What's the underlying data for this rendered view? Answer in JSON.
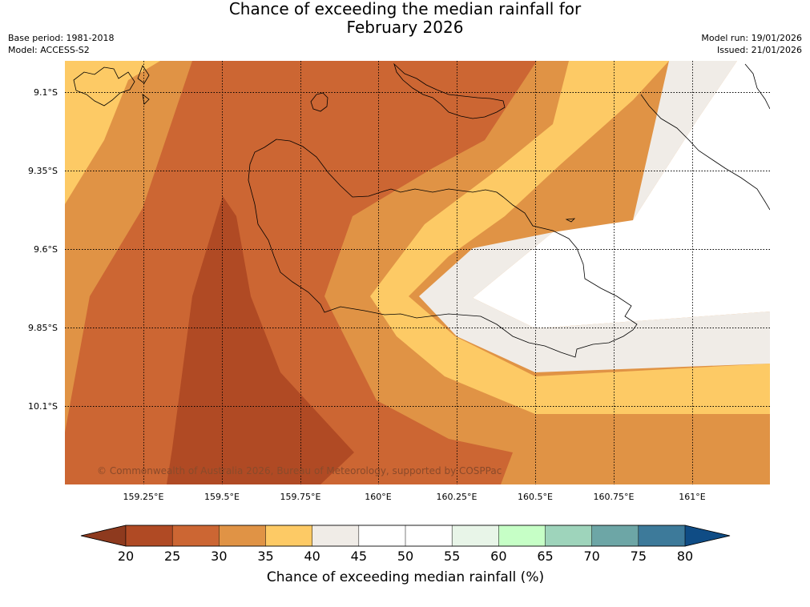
{
  "title_line1": "Chance of exceeding the median rainfall for",
  "title_line2": "February 2026",
  "base_period": "Base period: 1981-2018",
  "model": "Model: ACCESS-S2",
  "model_run": "Model run: 19/01/2026",
  "issued": "Issued: 21/01/2026",
  "copyright": "© Commonwealth of Australia 2026, Bureau of Meteorology, supported by COSPPac",
  "latitude_labels": [
    "9.1°S",
    "9.35°S",
    "9.6°S",
    "9.85°S",
    "10.1°S"
  ],
  "longitude_labels": [
    "159.25°E",
    "159.5°E",
    "159.75°E",
    "160°E",
    "160.25°E",
    "160.5°E",
    "160.75°E",
    "161°E"
  ],
  "colorbar": {
    "label": "Chance of exceeding median rainfall (%)",
    "ticks": [
      "20",
      "25",
      "30",
      "35",
      "40",
      "45",
      "50",
      "55",
      "60",
      "65",
      "70",
      "75",
      "80"
    ],
    "under_color": "#8e3a1e",
    "over_color": "#0f4c85",
    "colors": [
      "#b04a24",
      "#cc6633",
      "#e09345",
      "#fdca65",
      "#f0ece7",
      "#ffffff",
      "#ffffff",
      "#e8f5e8",
      "#c6ffc6",
      "#9ed4bb",
      "#6da6a6",
      "#3d7a9a"
    ]
  },
  "legend_colors": {
    "c20_25": "#b04a24",
    "c25_30": "#cc6633",
    "c30_35": "#e09345",
    "c35_40": "#fdca65",
    "c40_45": "#f0ece7",
    "c45_55": "#ffffff"
  }
}
